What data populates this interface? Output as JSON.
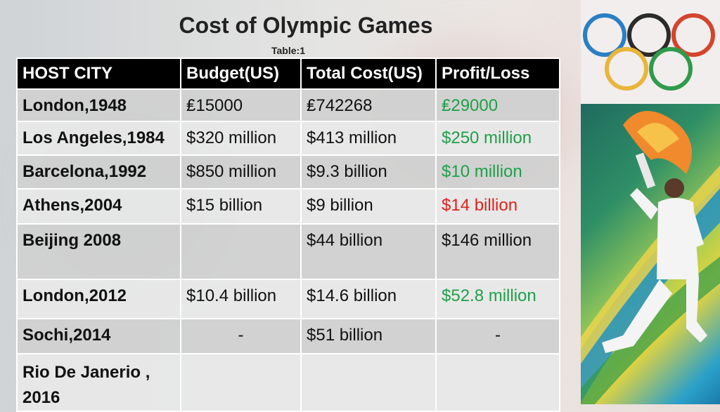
{
  "title": "Cost of Olympic Games",
  "caption": "Table:1",
  "table": {
    "headers": [
      "HOST CITY",
      "Budget(US)",
      "Total Cost(US)",
      "Profit/Loss"
    ],
    "rows": [
      {
        "city": "London,1948",
        "budget": "₤15000",
        "total": "₤742268",
        "result": "₤29000",
        "status": "profit"
      },
      {
        "city": "Los Angeles,1984",
        "budget": "$320 million",
        "total": "$413 million",
        "result": "$250 million",
        "status": "profit"
      },
      {
        "city": "Barcelona,1992",
        "budget": "$850 million",
        "total": "$9.3 billion",
        "result": "$10 million",
        "status": "profit"
      },
      {
        "city": "Athens,2004",
        "budget": "$15 billion",
        "total": "$9 billion",
        "result": "$14 billion",
        "status": "loss"
      },
      {
        "city": "Beijing 2008",
        "budget": "",
        "total": "$44 billion",
        "result": "$146 million",
        "status": "neutral"
      },
      {
        "city": "London,2012",
        "budget": "$10.4 billion",
        "total": "$14.6 billion",
        "result": "$52.8 million",
        "status": "profit"
      },
      {
        "city": "Sochi,2014",
        "budget": "-",
        "total": "$51 billion",
        "result": "-",
        "status": "neutral"
      },
      {
        "city": "Rio De Janerio , 2016",
        "budget": "",
        "total": "",
        "result": "",
        "status": "neutral"
      }
    ]
  },
  "colors": {
    "profit": "#1ea04a",
    "loss": "#e0221c",
    "header_bg": "#000000",
    "ring_blue": "#2a7fc4",
    "ring_black": "#2b2b2b",
    "ring_red": "#d4442c",
    "ring_yellow": "#e9b53a",
    "ring_green": "#2f9b4c"
  },
  "icons": [
    "olympic-rings-logo",
    "torch-bearer-illustration"
  ]
}
